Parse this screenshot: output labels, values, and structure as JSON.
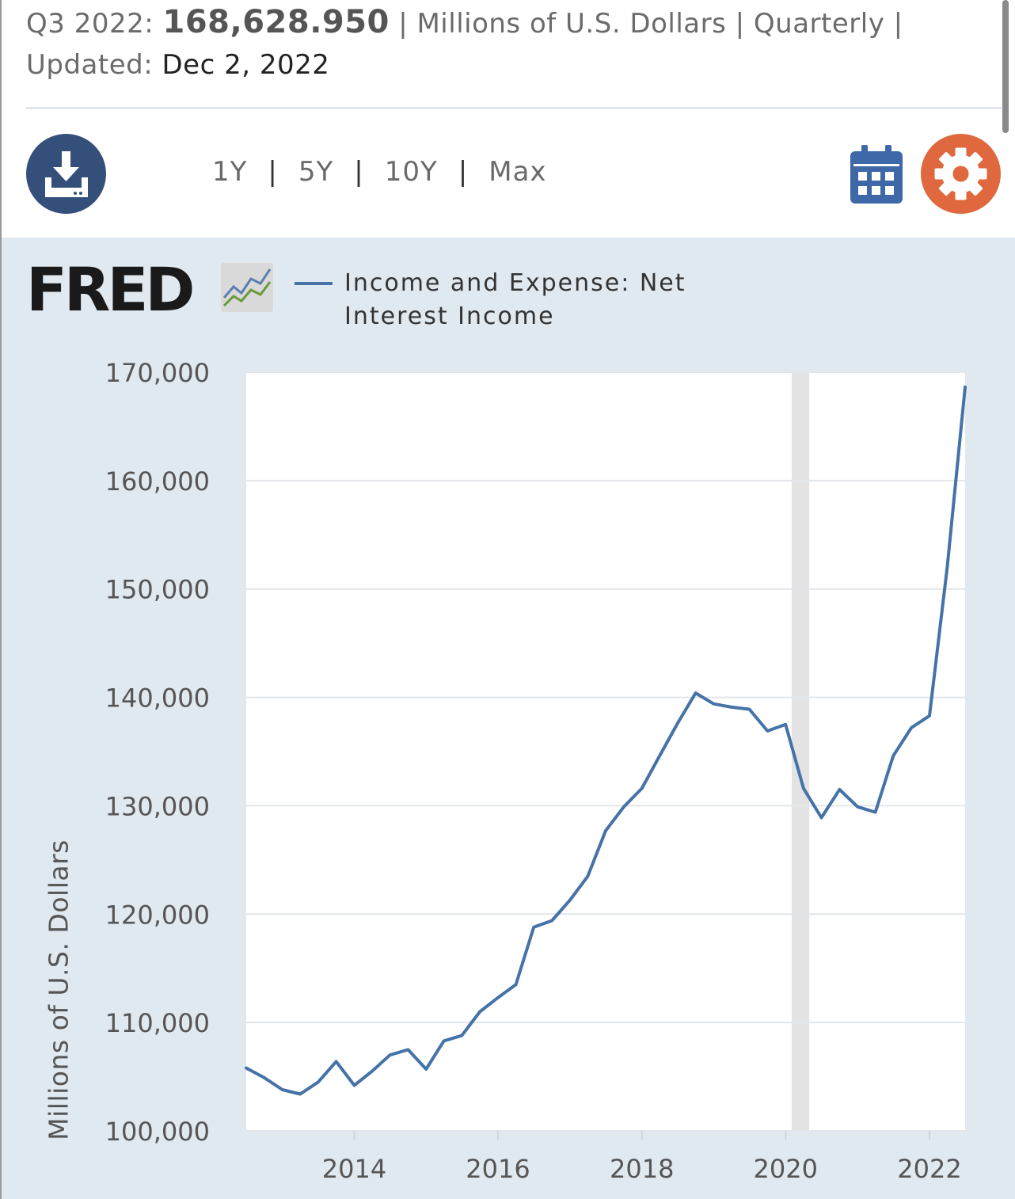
{
  "header": {
    "period": "Q3 2022:",
    "value": "168,628.950",
    "units_segment": "| Millions of U.S. Dollars | Quarterly |",
    "updated_label": "Updated:",
    "updated_date": "Dec 2, 2022"
  },
  "toolbar": {
    "download_icon": "download-icon",
    "ranges": [
      "1Y",
      "5Y",
      "10Y",
      "Max"
    ],
    "separator": "|",
    "calendar_icon": "calendar-icon",
    "settings_icon": "gear-icon"
  },
  "chart_header": {
    "logo_text": "FRED",
    "legend_label": "Income and Expense: Net Interest Income",
    "series_color": "#4572a7"
  },
  "colors": {
    "panel_bg": "#e1e9f0",
    "download_button": "#34507a",
    "settings_button": "#e0683f",
    "calendar": "#3f68a8",
    "recession_band": "#e3e3e3"
  },
  "chart_data": {
    "type": "line",
    "ylabel": "Millions of U.S. Dollars",
    "ylim": [
      100000,
      170000
    ],
    "xlim": [
      "2012-07-01",
      "2022-07-01"
    ],
    "yticks": [
      "100,000",
      "110,000",
      "120,000",
      "130,000",
      "140,000",
      "150,000",
      "160,000",
      "170,000"
    ],
    "xticks": [
      "2014",
      "2016",
      "2018",
      "2020",
      "2022"
    ],
    "grid": true,
    "recession_shading": [
      [
        "2020-02-01",
        "2020-04-30"
      ]
    ],
    "series": [
      {
        "color": "#4572a7",
        "x": [
          "2012-07-01",
          "2012-10-01",
          "2013-01-01",
          "2013-04-01",
          "2013-07-01",
          "2013-10-01",
          "2014-01-01",
          "2014-04-01",
          "2014-07-01",
          "2014-10-01",
          "2015-01-01",
          "2015-04-01",
          "2015-07-01",
          "2015-10-01",
          "2016-01-01",
          "2016-04-01",
          "2016-07-01",
          "2016-10-01",
          "2017-01-01",
          "2017-04-01",
          "2017-07-01",
          "2017-10-01",
          "2018-01-01",
          "2018-04-01",
          "2018-07-01",
          "2018-10-01",
          "2019-01-01",
          "2019-04-01",
          "2019-07-01",
          "2019-10-01",
          "2020-01-01",
          "2020-04-01",
          "2020-07-01",
          "2020-10-01",
          "2021-01-01",
          "2021-04-01",
          "2021-07-01",
          "2021-10-01",
          "2022-01-01",
          "2022-04-01",
          "2022-07-01"
        ],
        "values": [
          105800,
          104900,
          103800,
          103400,
          104500,
          106400,
          104200,
          105500,
          107000,
          107500,
          105700,
          108300,
          108800,
          111000,
          112300,
          113500,
          118800,
          119400,
          121300,
          123500,
          127700,
          129900,
          131600,
          134600,
          137600,
          140400,
          139400,
          139100,
          138900,
          136900,
          137500,
          131600,
          128900,
          131500,
          129900,
          129400,
          134600,
          137200,
          138300,
          152000,
          168629
        ]
      }
    ]
  }
}
